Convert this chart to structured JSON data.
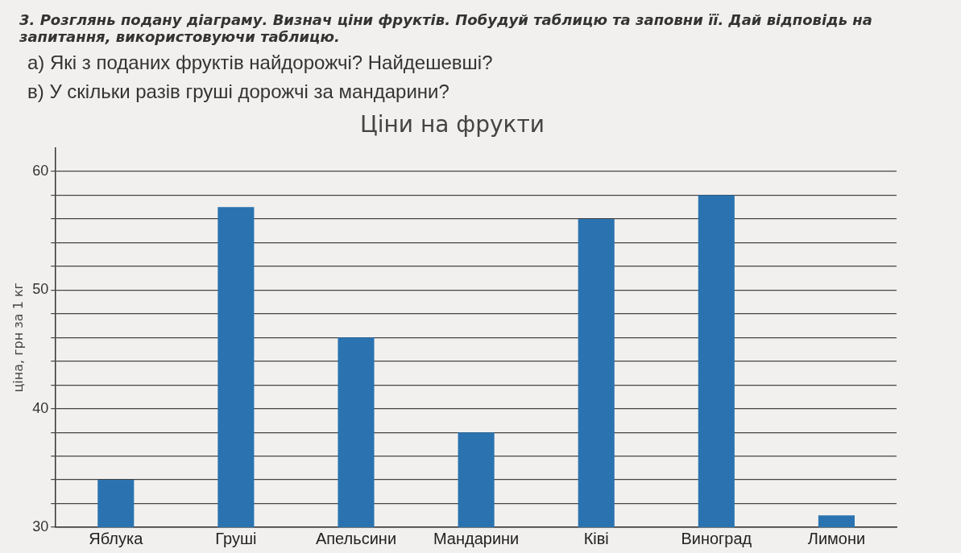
{
  "chart_data": {
    "type": "bar",
    "title": "Ціни на фрукти",
    "ylabel": "ціна, грн за 1 кг",
    "annotations": [
      "3. Розглянь подану діаграму. Визнач ціни фруктів. Побудуй таблицю та заповни її. Дай відповідь на запитання, використовуючи таблицю.",
      "а) Які з поданих фруктів найдорожчі? Найдешевші?",
      "в) У скільки разів груші дорожчі за мандарини?"
    ],
    "categories": [
      "Яблука",
      "Груші",
      "Апельсини",
      "Мандарини",
      "Ківі",
      "Виноград",
      "Лимони"
    ],
    "values": [
      34,
      57,
      46,
      38,
      56,
      58,
      31
    ],
    "color": "#2a73b0",
    "ylim": [
      30,
      62
    ],
    "yticks": [
      30,
      {
        "value": 32,
        "label": null
      },
      {
        "value": 34,
        "label": null
      },
      {
        "value": 36,
        "label": null
      },
      {
        "value": 38,
        "label": null
      },
      40,
      {
        "value": 42,
        "label": null
      },
      {
        "value": 44,
        "label": null
      },
      {
        "value": 46,
        "label": null
      },
      {
        "value": 48,
        "label": null
      },
      50,
      {
        "value": 52,
        "label": null
      },
      {
        "value": 54,
        "label": null
      },
      {
        "value": 56,
        "label": null
      },
      {
        "value": 58,
        "label": null
      },
      60
    ],
    "grid": "y",
    "legend": false
  }
}
